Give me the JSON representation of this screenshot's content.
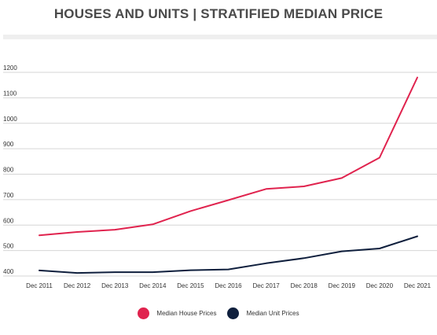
{
  "title": "HOUSES AND UNITS | STRATIFIED MEDIAN PRICE",
  "colors": {
    "house": "#e0234e",
    "unit": "#0f1f3d",
    "grid": "#d6d6d6",
    "title_rule": "#efefef"
  },
  "legend": {
    "house_label": "Median House Prices",
    "unit_label": "Median Unit Prices"
  },
  "chart_data": {
    "type": "line",
    "title": "HOUSES AND UNITS | STRATIFIED MEDIAN PRICE",
    "xlabel": "",
    "ylabel": "",
    "categories": [
      "Dec 2011",
      "Dec 2012",
      "Dec 2013",
      "Dec 2014",
      "Dec 2015",
      "Dec 2016",
      "Dec 2017",
      "Dec 2018",
      "Dec 2019",
      "Dec 2020",
      "Dec 2021"
    ],
    "yticks": [
      400,
      500,
      600,
      700,
      800,
      900,
      1000,
      1100,
      1200
    ],
    "ylim": [
      400,
      1200
    ],
    "grid": true,
    "legend_position": "bottom",
    "series": [
      {
        "name": "Median House Prices",
        "color": "#e0234e",
        "values": [
          560,
          573,
          582,
          603,
          655,
          698,
          742,
          752,
          785,
          865,
          1180
        ]
      },
      {
        "name": "Median Unit Prices",
        "color": "#0f1f3d",
        "values": [
          422,
          412,
          415,
          415,
          423,
          426,
          450,
          470,
          497,
          508,
          556
        ]
      }
    ]
  }
}
